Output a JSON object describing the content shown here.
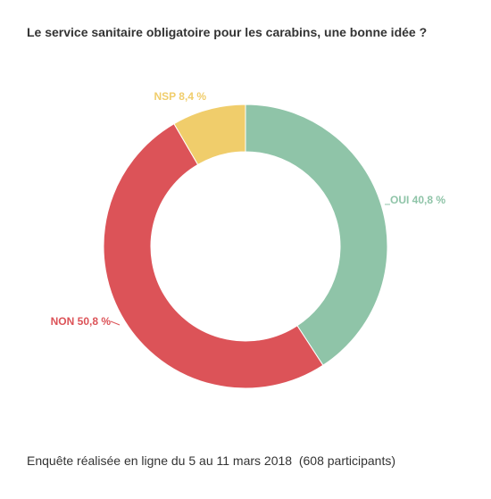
{
  "title": "Le service sanitaire obligatoire pour les carabins, une bonne idée ?",
  "footer": "Enquête réalisée en ligne du 5 au 11 mars 2018  (608 participants)",
  "chart_data": {
    "type": "pie",
    "donut": true,
    "title": "Le service sanitaire obligatoire pour les carabins, une bonne idée ?",
    "slices": [
      {
        "label": "OUI",
        "value": 40.8,
        "display": "OUI 40,8 %",
        "color": "#8fc4a8"
      },
      {
        "label": "NON",
        "value": 50.8,
        "display": "NON 50,8 %",
        "color": "#dc5358"
      },
      {
        "label": "NSP",
        "value": 8.4,
        "display": "NSP 8,4 %",
        "color": "#f0cd6b"
      }
    ]
  }
}
